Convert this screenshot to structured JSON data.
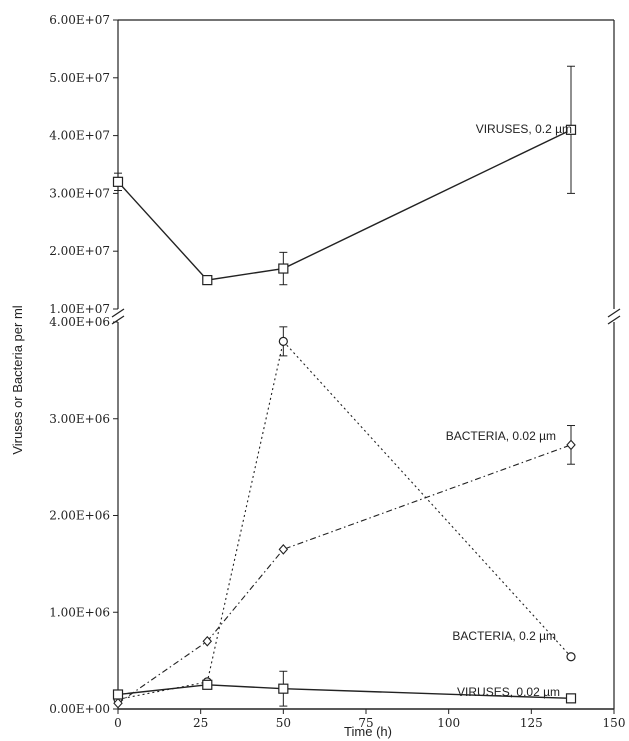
{
  "chart_data": {
    "type": "line",
    "xlabel": "Time (h)",
    "ylabel": "Viruses or Bacteria per ml",
    "xlim": [
      0,
      150
    ],
    "x_ticks": [
      "0",
      "25",
      "50",
      "75",
      "100",
      "125",
      "150"
    ],
    "broken_axis": true,
    "upper_panel": {
      "ylim": [
        10000000,
        60000000
      ],
      "y_ticks": [
        "1.00E+07",
        "2.00E+07",
        "3.00E+07",
        "4.00E+07",
        "5.00E+07",
        "6.00E+07"
      ]
    },
    "lower_panel": {
      "ylim": [
        0,
        4000000
      ],
      "y_ticks": [
        "0.00E+00",
        "1.00E+06",
        "2.00E+06",
        "3.00E+06",
        "4.00E+06"
      ]
    },
    "series": [
      {
        "name": "VIRUSES, 0.2 µm",
        "panel": "upper",
        "marker": "square",
        "line": "solid",
        "x": [
          0,
          27,
          50,
          137
        ],
        "y": [
          32000000,
          15000000,
          17000000,
          41000000
        ],
        "error": [
          1500000,
          0,
          2800000,
          11000000
        ]
      },
      {
        "name": "BACTERIA, 0.2 µm",
        "panel": "lower",
        "marker": "circle",
        "line": "dotted",
        "x": [
          0,
          27,
          50,
          137
        ],
        "y": [
          100000,
          280000,
          3800000,
          540000
        ],
        "error": [
          0,
          0,
          150000,
          0
        ]
      },
      {
        "name": "BACTERIA, 0.02 µm",
        "panel": "lower",
        "marker": "diamond",
        "line": "dashdot",
        "x": [
          0,
          27,
          50,
          137
        ],
        "y": [
          60000,
          700000,
          1650000,
          2730000
        ],
        "error": [
          0,
          0,
          0,
          200000
        ]
      },
      {
        "name": "VIRUSES, 0.02 µm",
        "panel": "lower",
        "marker": "square",
        "line": "solid",
        "x": [
          0,
          27,
          50,
          137
        ],
        "y": [
          150000,
          250000,
          210000,
          110000
        ],
        "error": [
          0,
          0,
          180000,
          0
        ]
      }
    ]
  }
}
